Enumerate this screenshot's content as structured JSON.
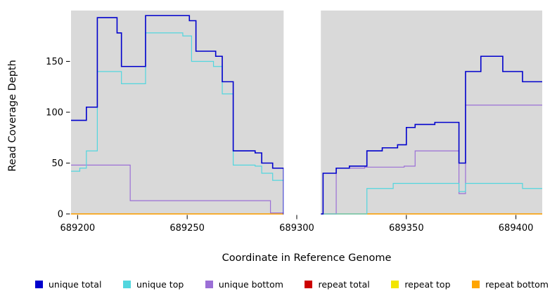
{
  "chart_data": {
    "type": "line",
    "step": true,
    "title": "",
    "xlabel": "Coordinate in Reference Genome",
    "ylabel": "Read Coverage Depth",
    "xlim": [
      689197,
      689412
    ],
    "ylim": [
      0,
      200
    ],
    "xticks": [
      689200,
      689250,
      689300,
      689350,
      689400
    ],
    "yticks": [
      0,
      50,
      100,
      150
    ],
    "plot_background": "#d9d9d9",
    "gap_region": [
      689294,
      689311
    ],
    "legend_position": "bottom",
    "series": [
      {
        "name": "unique total",
        "color": "#0000CD",
        "points": [
          [
            689197,
            92
          ],
          [
            689204,
            105
          ],
          [
            689209,
            193
          ],
          [
            689218,
            178
          ],
          [
            689220,
            145
          ],
          [
            689231,
            195
          ],
          [
            689251,
            190
          ],
          [
            689254,
            160
          ],
          [
            689263,
            155
          ],
          [
            689266,
            130
          ],
          [
            689271,
            62
          ],
          [
            689281,
            60
          ],
          [
            689284,
            50
          ],
          [
            689289,
            45
          ],
          [
            689294,
            0
          ],
          [
            689312,
            40
          ],
          [
            689318,
            45
          ],
          [
            689324,
            47
          ],
          [
            689332,
            62
          ],
          [
            689339,
            65
          ],
          [
            689346,
            68
          ],
          [
            689350,
            85
          ],
          [
            689354,
            88
          ],
          [
            689363,
            90
          ],
          [
            689374,
            50
          ],
          [
            689377,
            140
          ],
          [
            689384,
            155
          ],
          [
            689394,
            140
          ],
          [
            689403,
            130
          ]
        ]
      },
      {
        "name": "unique top",
        "color": "#52D6DE",
        "points": [
          [
            689197,
            42
          ],
          [
            689201,
            45
          ],
          [
            689204,
            62
          ],
          [
            689209,
            140
          ],
          [
            689220,
            128
          ],
          [
            689231,
            178
          ],
          [
            689248,
            175
          ],
          [
            689252,
            150
          ],
          [
            689262,
            145
          ],
          [
            689266,
            118
          ],
          [
            689271,
            48
          ],
          [
            689281,
            47
          ],
          [
            689284,
            40
          ],
          [
            689289,
            33
          ],
          [
            689294,
            0
          ],
          [
            689332,
            25
          ],
          [
            689344,
            30
          ],
          [
            689374,
            22
          ],
          [
            689377,
            30
          ],
          [
            689403,
            25
          ]
        ]
      },
      {
        "name": "unique bottom",
        "color": "#9B6FD6",
        "points": [
          [
            689197,
            48
          ],
          [
            689224,
            13
          ],
          [
            689288,
            1
          ],
          [
            689294,
            0
          ],
          [
            689318,
            45
          ],
          [
            689331,
            46
          ],
          [
            689349,
            47
          ],
          [
            689354,
            62
          ],
          [
            689374,
            20
          ],
          [
            689377,
            107
          ]
        ]
      },
      {
        "name": "repeat total",
        "color": "#CC0000",
        "points": [
          [
            689197,
            0
          ]
        ]
      },
      {
        "name": "repeat top",
        "color": "#F2E500",
        "points": [
          [
            689197,
            0
          ]
        ]
      },
      {
        "name": "repeat bottom",
        "color": "#FFA500",
        "points": [
          [
            689197,
            0
          ]
        ]
      }
    ]
  }
}
